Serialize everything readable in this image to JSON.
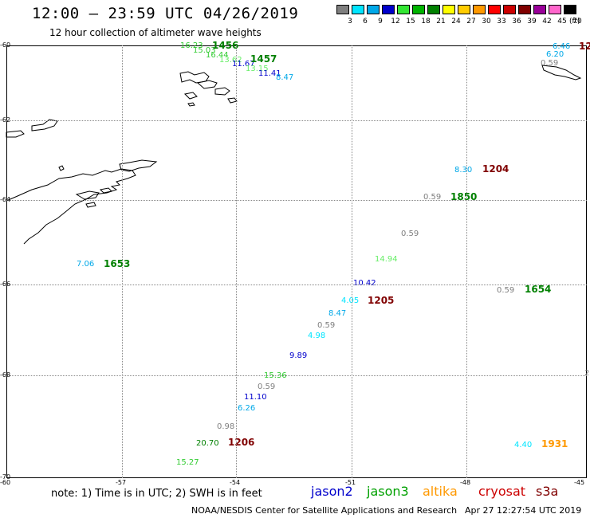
{
  "header": {
    "title": "12:00 – 23:59 UTC 04/26/2019",
    "subtitle": "12 hour collection of altimeter wave heights"
  },
  "colorbar": {
    "unit": "(ft)",
    "bins": [
      {
        "label": "3",
        "color": "#7f7f7f"
      },
      {
        "label": "6",
        "color": "#00e5ff"
      },
      {
        "label": "9",
        "color": "#00a8e8"
      },
      {
        "label": "12",
        "color": "#0000cc"
      },
      {
        "label": "15",
        "color": "#33e633"
      },
      {
        "label": "18",
        "color": "#00b300"
      },
      {
        "label": "21",
        "color": "#008000"
      },
      {
        "label": "24",
        "color": "#ffff00"
      },
      {
        "label": "27",
        "color": "#ffcc00"
      },
      {
        "label": "30",
        "color": "#ff9900"
      },
      {
        "label": "33",
        "color": "#ff0000"
      },
      {
        "label": "36",
        "color": "#cc0000"
      },
      {
        "label": "39",
        "color": "#800000"
      },
      {
        "label": "42",
        "color": "#990099"
      },
      {
        "label": "45",
        "color": "#ff66cc"
      },
      {
        "label": "70",
        "color": "#000000"
      }
    ]
  },
  "axes": {
    "lat_labels": [
      "-60",
      "-62",
      "-64",
      "-66",
      "-68",
      "-70"
    ],
    "lon_labels": [
      "-60",
      "-57",
      "-54",
      "-51",
      "-48",
      "-45"
    ]
  },
  "observations": [
    {
      "text": "16.23",
      "color": "#33cc33"
    },
    {
      "text": "15.03",
      "color": "#33cc33"
    },
    {
      "text": "16.44",
      "color": "#33cc33"
    },
    {
      "text": "13.62",
      "color": "#66ee66"
    },
    {
      "text": "11.67",
      "color": "#0000cc"
    },
    {
      "text": "13.15",
      "color": "#66ee66"
    },
    {
      "text": "11.41",
      "color": "#0000cc"
    },
    {
      "text": "8.47",
      "color": "#00a8e8"
    },
    {
      "text": "6.46",
      "color": "#00a8e8"
    },
    {
      "text": "6.20",
      "color": "#00a8e8"
    },
    {
      "text": "0.59",
      "color": "#7f7f7f"
    },
    {
      "text": "8.30",
      "color": "#00a8e8"
    },
    {
      "text": "0.59",
      "color": "#7f7f7f"
    },
    {
      "text": "0.59",
      "color": "#7f7f7f"
    },
    {
      "text": "14.94",
      "color": "#66ee66"
    },
    {
      "text": "7.06",
      "color": "#00a8e8"
    },
    {
      "text": "10.42",
      "color": "#0000cc"
    },
    {
      "text": "0.59",
      "color": "#7f7f7f"
    },
    {
      "text": "4.05",
      "color": "#00e5ff"
    },
    {
      "text": "8.47",
      "color": "#00a8e8"
    },
    {
      "text": "0.59",
      "color": "#7f7f7f"
    },
    {
      "text": "4.98",
      "color": "#00e5ff"
    },
    {
      "text": "9.89",
      "color": "#0000cc"
    },
    {
      "text": "15.36",
      "color": "#33cc33"
    },
    {
      "text": "0.59",
      "color": "#7f7f7f"
    },
    {
      "text": "11.10",
      "color": "#0000cc"
    },
    {
      "text": "6.26",
      "color": "#00a8e8"
    },
    {
      "text": "0.98",
      "color": "#7f7f7f"
    },
    {
      "text": "20.70",
      "color": "#008000"
    },
    {
      "text": "15.27",
      "color": "#33cc33"
    },
    {
      "text": "4.40",
      "color": "#00e5ff"
    }
  ],
  "time_labels": [
    {
      "text": "1456",
      "color": "#008000"
    },
    {
      "text": "1457",
      "color": "#008000"
    },
    {
      "text": "12",
      "color": "#800000"
    },
    {
      "text": "1204",
      "color": "#800000"
    },
    {
      "text": "1850",
      "color": "#008000"
    },
    {
      "text": "1653",
      "color": "#008000"
    },
    {
      "text": "1205",
      "color": "#800000"
    },
    {
      "text": "1654",
      "color": "#008000"
    },
    {
      "text": "1206",
      "color": "#800000"
    },
    {
      "text": "1931",
      "color": "#ff9900"
    },
    {
      "text": "2",
      "color": "#7f7f7f"
    }
  ],
  "footer": {
    "note": "note:  1) Time is in UTC;  2) SWH is in feet",
    "satellites": [
      {
        "name": "jason2",
        "color": "#0000cc"
      },
      {
        "name": "jason3",
        "color": "#00a000"
      },
      {
        "name": "altika",
        "color": "#ff9900"
      },
      {
        "name": "cryosat",
        "color": "#cc0000"
      },
      {
        "name": "s3a",
        "color": "#800000"
      }
    ],
    "credit": "NOAA/NESDIS Center for Satellite Applications and Research",
    "generated": "Apr 27 12:27:54 UTC 2019"
  }
}
